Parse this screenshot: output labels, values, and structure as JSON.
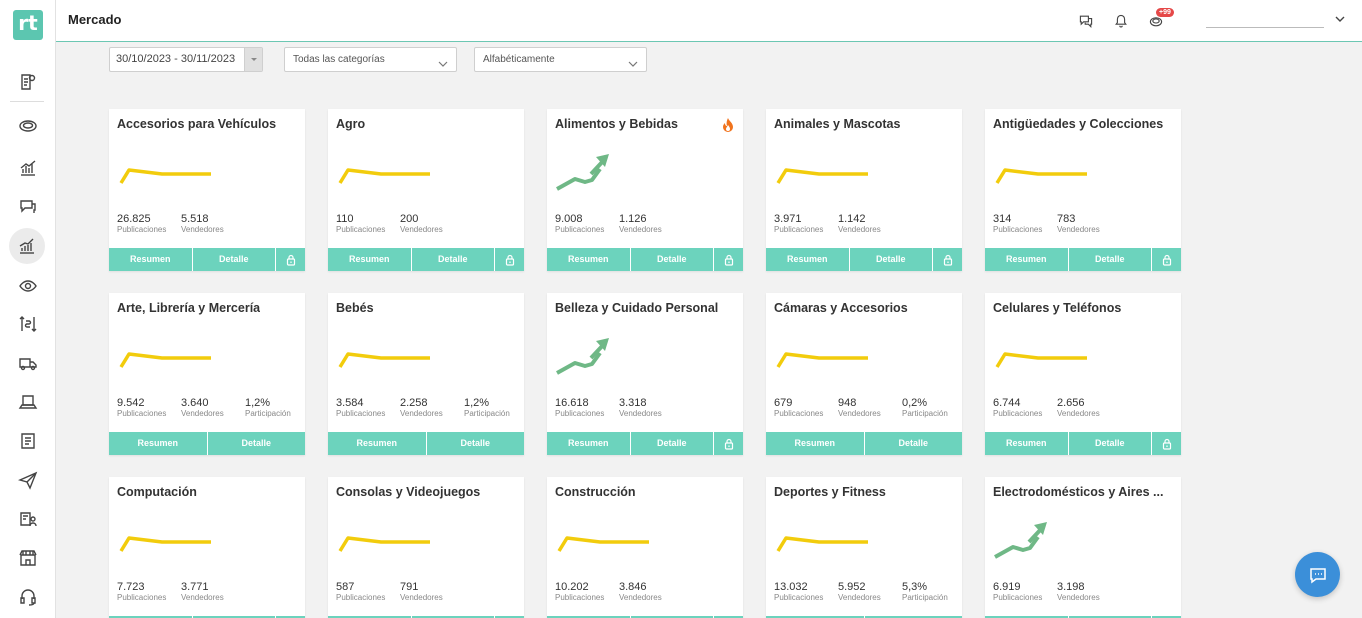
{
  "app": {
    "logo_text": "rt",
    "page_title": "Mercado"
  },
  "header": {
    "icons": [
      "chat-icon",
      "bell-icon",
      "coins-icon"
    ],
    "notification_badge": "+99",
    "user_name": ""
  },
  "sidebar": {
    "icons": [
      "document-plus-icon",
      "coins-icon",
      "chart-icon",
      "chat-icon",
      "trend-chart-icon",
      "eye-icon",
      "price-exchange-icon",
      "truck-icon",
      "laptop-icon",
      "list-icon",
      "send-icon",
      "user-card-icon",
      "store-icon",
      "headset-icon"
    ],
    "active_index": 4
  },
  "filters": {
    "date_range": "30/10/2023 - 30/11/2023",
    "category": "Todas las categorías",
    "sort": "Alfabéticamente"
  },
  "labels": {
    "pubs": "Publicaciones",
    "sellers": "Vendedores",
    "share": "Participación",
    "summary_btn": "Resumen",
    "detail_btn": "Detalle"
  },
  "colors": {
    "accent": "#6cd3bd",
    "flat_trend": "#f2cc0c",
    "up_trend": "#6fb886",
    "fab": "#3b8fd9",
    "badge": "#e54848"
  },
  "cards": [
    {
      "title": "Accesorios para Vehículos",
      "pubs": "26.825",
      "sellers": "5.518",
      "share": "",
      "trend": "flat",
      "locked": true,
      "hot": false
    },
    {
      "title": "Agro",
      "pubs": "110",
      "sellers": "200",
      "share": "",
      "trend": "flat",
      "locked": true,
      "hot": false
    },
    {
      "title": "Alimentos y Bebidas",
      "pubs": "9.008",
      "sellers": "1.126",
      "share": "",
      "trend": "up",
      "locked": true,
      "hot": true
    },
    {
      "title": "Animales y Mascotas",
      "pubs": "3.971",
      "sellers": "1.142",
      "share": "",
      "trend": "flat",
      "locked": true,
      "hot": false
    },
    {
      "title": "Antigüedades y Colecciones",
      "pubs": "314",
      "sellers": "783",
      "share": "",
      "trend": "flat",
      "locked": true,
      "hot": false
    },
    {
      "title": "Arte, Librería y Mercería",
      "pubs": "9.542",
      "sellers": "3.640",
      "share": "1,2%",
      "trend": "flat",
      "locked": false,
      "hot": false
    },
    {
      "title": "Bebés",
      "pubs": "3.584",
      "sellers": "2.258",
      "share": "1,2%",
      "trend": "flat",
      "locked": false,
      "hot": false
    },
    {
      "title": "Belleza y Cuidado Personal",
      "pubs": "16.618",
      "sellers": "3.318",
      "share": "",
      "trend": "up",
      "locked": true,
      "hot": false
    },
    {
      "title": "Cámaras y Accesorios",
      "pubs": "679",
      "sellers": "948",
      "share": "0,2%",
      "trend": "flat",
      "locked": false,
      "hot": false
    },
    {
      "title": "Celulares y Teléfonos",
      "pubs": "6.744",
      "sellers": "2.656",
      "share": "",
      "trend": "flat",
      "locked": true,
      "hot": false
    },
    {
      "title": "Computación",
      "pubs": "7.723",
      "sellers": "3.771",
      "share": "",
      "trend": "flat",
      "locked": true,
      "hot": false
    },
    {
      "title": "Consolas y Videojuegos",
      "pubs": "587",
      "sellers": "791",
      "share": "",
      "trend": "flat",
      "locked": true,
      "hot": false
    },
    {
      "title": "Construcción",
      "pubs": "10.202",
      "sellers": "3.846",
      "share": "",
      "trend": "flat",
      "locked": true,
      "hot": false
    },
    {
      "title": "Deportes y Fitness",
      "pubs": "13.032",
      "sellers": "5.952",
      "share": "5,3%",
      "trend": "flat",
      "locked": false,
      "hot": false
    },
    {
      "title": "Electrodomésticos y Aires ...",
      "pubs": "6.919",
      "sellers": "3.198",
      "share": "",
      "trend": "up",
      "locked": true,
      "hot": false
    }
  ]
}
